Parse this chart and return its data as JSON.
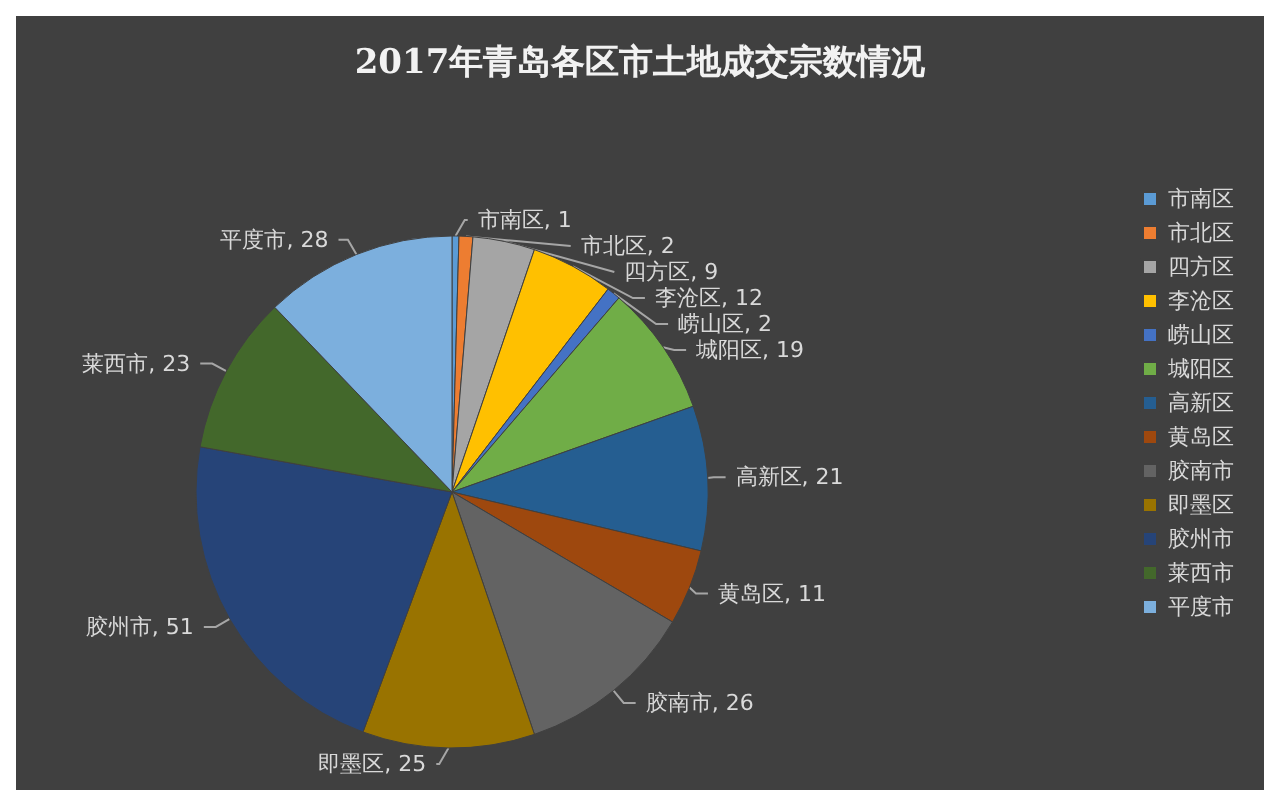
{
  "chart_data": {
    "type": "pie",
    "title": "2017年青岛各区市土地成交宗数情况",
    "categories": [
      "市南区",
      "市北区",
      "四方区",
      "李沧区",
      "崂山区",
      "城阳区",
      "高新区",
      "黄岛区",
      "胶南市",
      "即墨区",
      "胶州市",
      "莱西市",
      "平度市"
    ],
    "values": [
      1,
      2,
      9,
      12,
      2,
      19,
      21,
      11,
      26,
      25,
      51,
      23,
      28
    ],
    "value_labels": [
      "市南区, 1",
      "市北区, 2",
      "四方区, 9",
      "李沧区, 12",
      "崂山区, 2",
      "城阳区, 19",
      "高新区, 21",
      "黄岛区, 11",
      "胶南市, 26",
      "即墨区, 25",
      "胶州市, 51",
      "莱西市, 23",
      "平度市, 28"
    ],
    "colors": [
      "#5b9bd5",
      "#ed7d31",
      "#a5a5a5",
      "#ffc000",
      "#4472c4",
      "#70ad47",
      "#255e91",
      "#9e480e",
      "#636363",
      "#997300",
      "#264478",
      "#43682b",
      "#7cafdd"
    ],
    "legend": "right"
  }
}
